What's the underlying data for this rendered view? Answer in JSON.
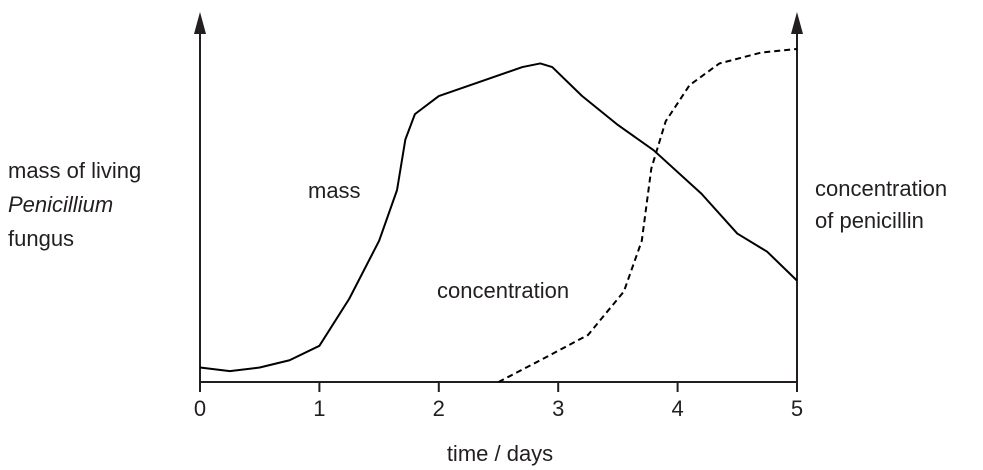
{
  "chart_data": {
    "type": "line",
    "xlabel": "time / days",
    "ylabel_lines": [
      "mass of living",
      "Penicillium",
      "fungus"
    ],
    "y2label_lines": [
      "concentration",
      "of penicillin"
    ],
    "xlim": [
      0,
      5
    ],
    "xticks": [
      0,
      1,
      2,
      3,
      4,
      5
    ],
    "ylim": [
      0,
      100
    ],
    "y2lim": [
      0,
      100
    ],
    "series": [
      {
        "name": "mass",
        "color": "#000000",
        "dashed": false,
        "x": [
          0,
          0.25,
          0.5,
          0.75,
          1.0,
          1.25,
          1.5,
          1.65,
          1.72,
          1.8,
          2.0,
          2.35,
          2.7,
          2.85,
          2.95,
          3.2,
          3.5,
          3.8,
          4.2,
          4.5,
          4.75,
          5
        ],
        "values": [
          4,
          3,
          4,
          6,
          10,
          23,
          39,
          53,
          67,
          74,
          79,
          83,
          87,
          88,
          87,
          79,
          71,
          64,
          52,
          41,
          36,
          28
        ]
      },
      {
        "name": "concentration",
        "color": "#000000",
        "dashed": true,
        "axis": "y2",
        "x": [
          2.5,
          2.85,
          3.25,
          3.55,
          3.7,
          3.78,
          3.9,
          4.1,
          4.35,
          4.7,
          5
        ],
        "values": [
          0,
          6,
          13,
          25,
          39,
          59,
          72,
          82,
          88,
          91,
          92
        ]
      }
    ]
  }
}
